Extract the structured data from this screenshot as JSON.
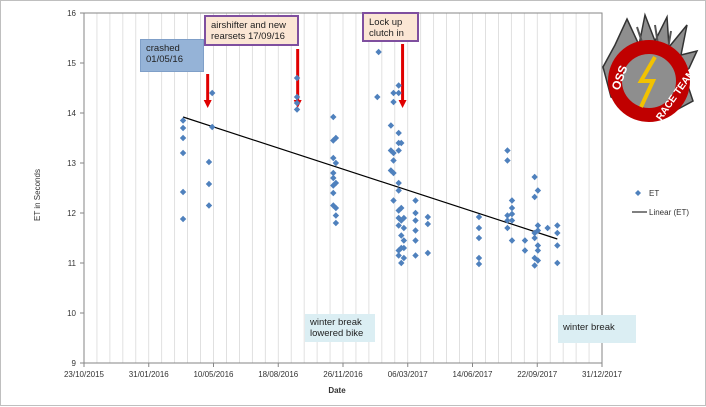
{
  "chart_data": {
    "type": "scatter",
    "title": "",
    "xlabel": "Date",
    "ylabel": "ET in Seconds",
    "ylim": [
      9,
      16
    ],
    "y_ticks": [
      "9",
      "10",
      "11",
      "12",
      "13",
      "14",
      "15",
      "16"
    ],
    "x_ticks": [
      "23/10/2015",
      "31/01/2016",
      "10/05/2016",
      "18/08/2016",
      "26/11/2016",
      "06/03/2017",
      "14/06/2017",
      "22/09/2017",
      "31/12/2017"
    ],
    "x_start": "2015-10-23",
    "x_end": "2017-12-31",
    "gridlines": "vertical minor",
    "legend": {
      "position": "right",
      "entries": [
        "ET",
        "Linear (ET)"
      ]
    },
    "series": [
      {
        "name": "ET",
        "marker": "diamond",
        "color": "#4f81bd",
        "points": [
          [
            "2016-03-24",
            13.85
          ],
          [
            "2016-03-24",
            13.7
          ],
          [
            "2016-03-24",
            13.5
          ],
          [
            "2016-03-24",
            13.2
          ],
          [
            "2016-03-24",
            12.42
          ],
          [
            "2016-03-24",
            11.88
          ],
          [
            "2016-05-03",
            13.02
          ],
          [
            "2016-05-03",
            12.58
          ],
          [
            "2016-05-03",
            12.15
          ],
          [
            "2016-05-08",
            14.4
          ],
          [
            "2016-05-08",
            13.72
          ],
          [
            "2016-09-16",
            14.7
          ],
          [
            "2016-09-16",
            14.32
          ],
          [
            "2016-09-16",
            14.2
          ],
          [
            "2016-09-16",
            14.07
          ],
          [
            "2016-11-11",
            13.92
          ],
          [
            "2016-11-11",
            13.45
          ],
          [
            "2016-11-11",
            13.1
          ],
          [
            "2016-11-11",
            12.8
          ],
          [
            "2016-11-11",
            12.7
          ],
          [
            "2016-11-11",
            12.55
          ],
          [
            "2016-11-11",
            12.4
          ],
          [
            "2016-11-11",
            12.15
          ],
          [
            "2016-11-15",
            13.5
          ],
          [
            "2016-11-15",
            13.0
          ],
          [
            "2016-11-15",
            12.6
          ],
          [
            "2016-11-15",
            12.1
          ],
          [
            "2016-11-15",
            11.95
          ],
          [
            "2016-11-15",
            11.8
          ],
          [
            "2017-01-20",
            15.22
          ],
          [
            "2017-01-18",
            14.32
          ],
          [
            "2017-02-08",
            13.75
          ],
          [
            "2017-02-08",
            13.25
          ],
          [
            "2017-02-08",
            12.85
          ],
          [
            "2017-02-12",
            14.4
          ],
          [
            "2017-02-12",
            14.22
          ],
          [
            "2017-02-12",
            13.2
          ],
          [
            "2017-02-12",
            13.05
          ],
          [
            "2017-02-12",
            12.8
          ],
          [
            "2017-02-12",
            12.25
          ],
          [
            "2017-02-20",
            14.55
          ],
          [
            "2017-02-20",
            14.4
          ],
          [
            "2017-02-20",
            13.6
          ],
          [
            "2017-02-20",
            13.4
          ],
          [
            "2017-02-20",
            13.25
          ],
          [
            "2017-02-20",
            12.6
          ],
          [
            "2017-02-20",
            12.45
          ],
          [
            "2017-02-20",
            12.05
          ],
          [
            "2017-02-20",
            11.9
          ],
          [
            "2017-02-20",
            11.75
          ],
          [
            "2017-02-20",
            11.25
          ],
          [
            "2017-02-20",
            11.15
          ],
          [
            "2017-02-24",
            13.4
          ],
          [
            "2017-02-24",
            12.1
          ],
          [
            "2017-02-24",
            11.85
          ],
          [
            "2017-02-24",
            11.55
          ],
          [
            "2017-02-24",
            11.3
          ],
          [
            "2017-02-24",
            11.0
          ],
          [
            "2017-02-28",
            11.9
          ],
          [
            "2017-02-28",
            11.7
          ],
          [
            "2017-02-28",
            11.45
          ],
          [
            "2017-02-28",
            11.3
          ],
          [
            "2017-02-28",
            11.1
          ],
          [
            "2017-03-18",
            12.25
          ],
          [
            "2017-03-18",
            12.0
          ],
          [
            "2017-03-18",
            11.85
          ],
          [
            "2017-03-18",
            11.65
          ],
          [
            "2017-03-18",
            11.45
          ],
          [
            "2017-03-18",
            11.15
          ],
          [
            "2017-04-06",
            11.92
          ],
          [
            "2017-04-06",
            11.78
          ],
          [
            "2017-04-06",
            11.2
          ],
          [
            "2017-06-24",
            11.92
          ],
          [
            "2017-06-24",
            11.7
          ],
          [
            "2017-06-24",
            11.5
          ],
          [
            "2017-06-24",
            11.1
          ],
          [
            "2017-06-24",
            10.98
          ],
          [
            "2017-08-07",
            13.25
          ],
          [
            "2017-08-07",
            13.05
          ],
          [
            "2017-08-07",
            11.95
          ],
          [
            "2017-08-07",
            11.85
          ],
          [
            "2017-08-07",
            11.7
          ],
          [
            "2017-08-14",
            12.25
          ],
          [
            "2017-08-14",
            12.1
          ],
          [
            "2017-08-14",
            11.98
          ],
          [
            "2017-08-14",
            11.85
          ],
          [
            "2017-08-14",
            11.45
          ],
          [
            "2017-09-03",
            11.45
          ],
          [
            "2017-09-03",
            11.25
          ],
          [
            "2017-09-18",
            12.72
          ],
          [
            "2017-09-18",
            12.32
          ],
          [
            "2017-09-18",
            11.6
          ],
          [
            "2017-09-18",
            11.5
          ],
          [
            "2017-09-18",
            11.1
          ],
          [
            "2017-09-18",
            10.95
          ],
          [
            "2017-09-23",
            12.45
          ],
          [
            "2017-09-23",
            11.75
          ],
          [
            "2017-09-23",
            11.65
          ],
          [
            "2017-09-23",
            11.35
          ],
          [
            "2017-09-23",
            11.25
          ],
          [
            "2017-09-23",
            11.05
          ],
          [
            "2017-10-08",
            11.7
          ],
          [
            "2017-10-23",
            11.75
          ],
          [
            "2017-10-23",
            11.6
          ],
          [
            "2017-10-23",
            11.35
          ],
          [
            "2017-10-23",
            11.0
          ]
        ]
      },
      {
        "name": "Linear (ET)",
        "type": "line",
        "color": "#000000",
        "points": [
          [
            "2016-03-24",
            13.92
          ],
          [
            "2017-10-23",
            11.48
          ]
        ]
      }
    ],
    "annotations": [
      {
        "id": "crashed",
        "text": "crashed 01/05/16",
        "date": "2016-05-01"
      },
      {
        "id": "airshifter",
        "text": "airshifter and new rearsets 17/09/16",
        "date": "2016-09-17"
      },
      {
        "id": "lockup",
        "text": "Lock up clutch  in",
        "date": "2017-02-26"
      },
      {
        "id": "winter1",
        "text": "winter break lowered bike"
      },
      {
        "id": "winter2",
        "text": "winter break"
      }
    ]
  },
  "logo": {
    "line1": "OSS",
    "line2": "RACE TEAM"
  }
}
